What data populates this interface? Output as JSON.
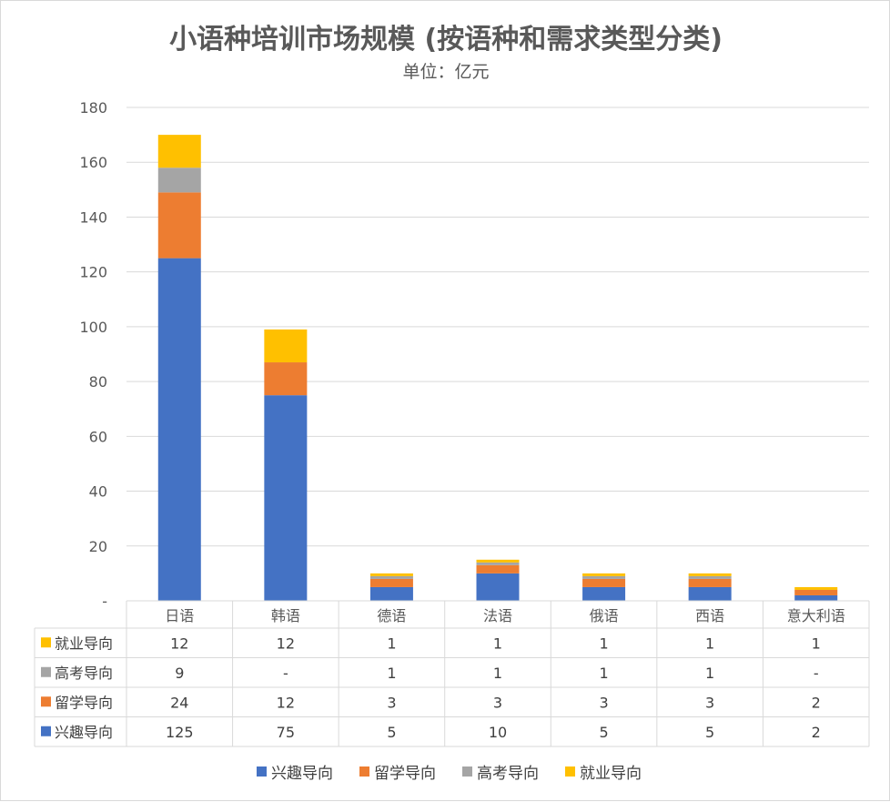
{
  "chart_data": {
    "type": "bar",
    "stacked": true,
    "title": "小语种培训市场规模 (按语种和需求类型分类)",
    "subtitle": "单位：亿元",
    "categories": [
      "日语",
      "韩语",
      "德语",
      "法语",
      "俄语",
      "西语",
      "意大利语"
    ],
    "ylim": [
      0,
      180
    ],
    "yticks": [
      "-",
      "20",
      "40",
      "60",
      "80",
      "100",
      "120",
      "140",
      "160",
      "180"
    ],
    "grid": true,
    "legend_position": "bottom",
    "series": [
      {
        "name": "兴趣导向",
        "color": "#4472C4",
        "values": [
          125,
          75,
          5,
          10,
          5,
          5,
          2
        ],
        "labels": [
          "125",
          "75",
          "5",
          "10",
          "5",
          "5",
          "2"
        ]
      },
      {
        "name": "留学导向",
        "color": "#ED7D31",
        "values": [
          24,
          12,
          3,
          3,
          3,
          3,
          2
        ],
        "labels": [
          "24",
          "12",
          "3",
          "3",
          "3",
          "3",
          "2"
        ]
      },
      {
        "name": "高考导向",
        "color": "#A5A5A5",
        "values": [
          9,
          0,
          1,
          1,
          1,
          1,
          0
        ],
        "labels": [
          "9",
          "-",
          "1",
          "1",
          "1",
          "1",
          "-"
        ]
      },
      {
        "name": "就业导向",
        "color": "#FFC000",
        "values": [
          12,
          12,
          1,
          1,
          1,
          1,
          1
        ],
        "labels": [
          "12",
          "12",
          "1",
          "1",
          "1",
          "1",
          "1"
        ]
      }
    ]
  }
}
